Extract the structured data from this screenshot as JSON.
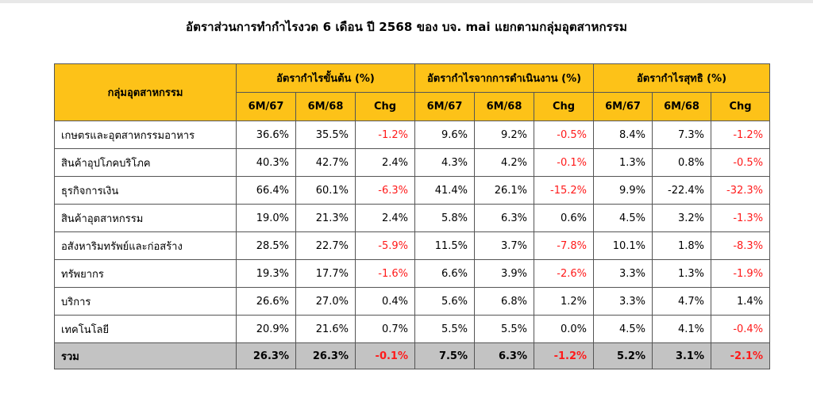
{
  "title": "อัตราส่วนการทำกำไรงวด 6 เดือน ปี 2568  ของ บจ. mai แยกตามกลุ่มอุตสาหกรรม",
  "table": {
    "group_header": "กลุ่มอุตสาหกรรม",
    "metric_headers": [
      "อัตรากำไรขั้นต้น (%)",
      "อัตรากำไรจากการดำเนินงาน (%)",
      "อัตรากำไรสุทธิ (%)"
    ],
    "sub_headers": [
      "6M/67",
      "6M/68",
      "Chg"
    ],
    "rows": [
      {
        "name": "เกษตรและอุตสาหกรรมอาหาร",
        "values": [
          "36.6%",
          "35.5%",
          "-1.2%",
          "9.6%",
          "9.2%",
          "-0.5%",
          "8.4%",
          "7.3%",
          "-1.2%"
        ]
      },
      {
        "name": "สินค้าอุปโภคบริโภค",
        "values": [
          "40.3%",
          "42.7%",
          "2.4%",
          "4.3%",
          "4.2%",
          "-0.1%",
          "1.3%",
          "0.8%",
          "-0.5%"
        ]
      },
      {
        "name": "ธุรกิจการเงิน",
        "values": [
          "66.4%",
          "60.1%",
          "-6.3%",
          "41.4%",
          "26.1%",
          "-15.2%",
          "9.9%",
          "-22.4%",
          "-32.3%"
        ]
      },
      {
        "name": "สินค้าอุตสาหกรรม",
        "values": [
          "19.0%",
          "21.3%",
          "2.4%",
          "5.8%",
          "6.3%",
          "0.6%",
          "4.5%",
          "3.2%",
          "-1.3%"
        ]
      },
      {
        "name": "อสังหาริมทรัพย์และก่อสร้าง",
        "values": [
          "28.5%",
          "22.7%",
          "-5.9%",
          "11.5%",
          "3.7%",
          "-7.8%",
          "10.1%",
          "1.8%",
          "-8.3%"
        ]
      },
      {
        "name": "ทรัพยากร",
        "values": [
          "19.3%",
          "17.7%",
          "-1.6%",
          "6.6%",
          "3.9%",
          "-2.6%",
          "3.3%",
          "1.3%",
          "-1.9%"
        ]
      },
      {
        "name": "บริการ",
        "values": [
          "26.6%",
          "27.0%",
          "0.4%",
          "5.6%",
          "6.8%",
          "1.2%",
          "3.3%",
          "4.7%",
          "1.4%"
        ]
      },
      {
        "name": "เทคโนโลยี",
        "values": [
          "20.9%",
          "21.6%",
          "0.7%",
          "5.5%",
          "5.5%",
          "0.0%",
          "4.5%",
          "4.1%",
          "-0.4%"
        ]
      }
    ],
    "total": {
      "name": "รวม",
      "values": [
        "26.3%",
        "26.3%",
        "-0.1%",
        "7.5%",
        "6.3%",
        "-1.2%",
        "5.2%",
        "3.1%",
        "-2.1%"
      ]
    }
  },
  "colors": {
    "header_bg": "#fdc218",
    "total_bg": "#c3c3c3",
    "negative_text": "#ff1a1a",
    "border": "#555555"
  }
}
